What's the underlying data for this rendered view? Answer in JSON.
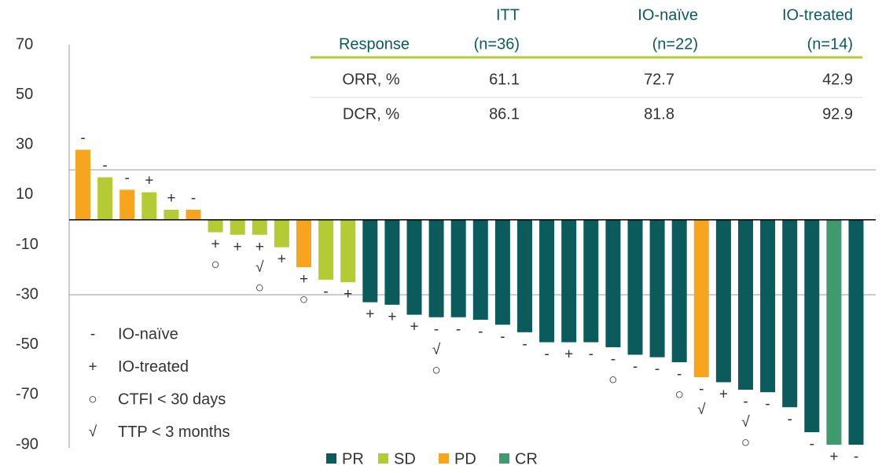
{
  "chart_data": {
    "type": "waterfall",
    "values": [
      28,
      17,
      12,
      11,
      4,
      4,
      -5,
      -6,
      -6,
      -11,
      -19,
      -24,
      -25,
      -33,
      -34,
      -38,
      -39,
      -39,
      -40,
      -42,
      -45,
      -49,
      -49,
      -49,
      -51,
      -54,
      -55,
      -57,
      -63,
      -65,
      -68,
      -69,
      -75,
      -85,
      -90,
      -90
    ],
    "bar_groups": [
      2,
      1,
      2,
      1,
      1,
      2,
      1,
      1,
      1,
      1,
      2,
      1,
      1,
      0,
      0,
      0,
      0,
      0,
      0,
      0,
      0,
      0,
      0,
      0,
      0,
      0,
      0,
      0,
      2,
      0,
      0,
      0,
      0,
      0,
      3,
      0
    ],
    "bar_labels": [
      [
        "-"
      ],
      [
        "-"
      ],
      [
        "-"
      ],
      [
        "+"
      ],
      [
        "+"
      ],
      [
        "-"
      ],
      [
        "+",
        "○"
      ],
      [
        "+"
      ],
      [
        "+",
        "√",
        "○"
      ],
      [
        "+"
      ],
      [
        "+",
        "○"
      ],
      [
        "-"
      ],
      [
        "+"
      ],
      [
        "+"
      ],
      [
        "+"
      ],
      [
        "+"
      ],
      [
        "-",
        "√",
        "○"
      ],
      [
        "-"
      ],
      [
        "-"
      ],
      [
        "-"
      ],
      [
        "-"
      ],
      [
        "-"
      ],
      [
        "+"
      ],
      [
        "-"
      ],
      [
        "-",
        "○"
      ],
      [
        "-"
      ],
      [
        "-"
      ],
      [
        "-",
        "○"
      ],
      [
        "-",
        "√"
      ],
      [
        "+"
      ],
      [
        "-",
        "√",
        "○"
      ],
      [
        "-"
      ],
      [
        "-"
      ],
      [
        "-"
      ],
      [
        "+"
      ],
      [
        "-"
      ]
    ],
    "legend": [
      {
        "name": "PR",
        "color": "#0b5b5c"
      },
      {
        "name": "SD",
        "color": "#b5cb34"
      },
      {
        "name": "PD",
        "color": "#f7a51f"
      },
      {
        "name": "CR",
        "color": "#3f9a6f"
      }
    ],
    "symbol_legend": [
      {
        "symbol": "-",
        "label": "IO-naïve"
      },
      {
        "symbol": "+",
        "label": "IO-treated"
      },
      {
        "symbol": "○",
        "label": "CTFI < 30 days"
      },
      {
        "symbol": "√",
        "label": "TTP < 3 months"
      }
    ],
    "reference_lines": [
      20,
      -30
    ],
    "ylim": [
      -90,
      70
    ],
    "yticks": [
      70,
      50,
      30,
      10,
      -10,
      -30,
      -50,
      -70,
      -90
    ]
  },
  "table": {
    "header": [
      [
        "Response"
      ],
      [
        "ITT",
        "(n=36)"
      ],
      [
        "IO-naïve",
        "(n=22)"
      ],
      [
        "IO-treated",
        "(n=14)"
      ]
    ],
    "rows": [
      [
        "ORR, %",
        "61.1",
        "72.7",
        "42.9"
      ],
      [
        "DCR, %",
        "86.1",
        "81.8",
        "92.9"
      ]
    ]
  }
}
